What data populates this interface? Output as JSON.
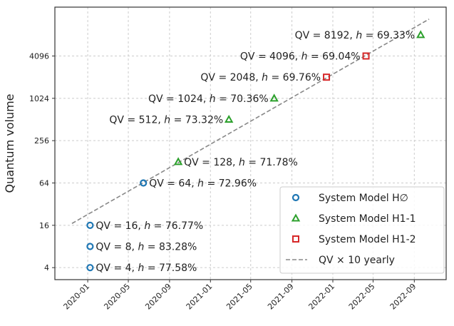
{
  "chart_data": {
    "type": "scatter",
    "title": "",
    "xlabel": "",
    "ylabel": "Quantum volume",
    "yscale": "log2",
    "ylim": [
      2.7,
      20300
    ],
    "xlim": [
      "2019-09-25",
      "2022-12-05"
    ],
    "yticks": [
      4,
      16,
      64,
      256,
      1024,
      4096
    ],
    "ytick_labels": [
      "4",
      "16",
      "64",
      "256",
      "1024",
      "4096"
    ],
    "xticks": [
      "2020-01",
      "2020-05",
      "2020-09",
      "2021-01",
      "2021-05",
      "2021-09",
      "2022-01",
      "2022-05",
      "2022-09"
    ],
    "grid": true,
    "legend_position": "bottom-right",
    "series": [
      {
        "name": "System Model H∅",
        "marker": "circle",
        "color": "#1f77b4",
        "points": [
          {
            "x": "2020-01-08",
            "y": 4,
            "label": "QV = 4, ",
            "h": "77.58%"
          },
          {
            "x": "2020-01-08",
            "y": 8,
            "label": "QV = 8, ",
            "h": "83.28%"
          },
          {
            "x": "2020-01-08",
            "y": 16,
            "label": "QV = 16, ",
            "h": "76.77%"
          },
          {
            "x": "2020-06-15",
            "y": 64,
            "label": "QV = 64, ",
            "h": "72.96%"
          }
        ]
      },
      {
        "name": "System Model H1-1",
        "marker": "triangle",
        "color": "#2ca02c",
        "points": [
          {
            "x": "2020-09-27",
            "y": 128,
            "label": "QV = 128, ",
            "h": "71.78%"
          },
          {
            "x": "2021-02-25",
            "y": 512,
            "label": "QV = 512, ",
            "h": "73.32%"
          },
          {
            "x": "2021-07-10",
            "y": 1024,
            "label": "QV = 1024, ",
            "h": "70.36%"
          },
          {
            "x": "2022-09-20",
            "y": 8192,
            "label": "QV = 8192, ",
            "h": "69.33%"
          }
        ]
      },
      {
        "name": "System Model H1-2",
        "marker": "square",
        "color": "#d62728",
        "points": [
          {
            "x": "2021-12-13",
            "y": 2048,
            "label": "QV = 2048, ",
            "h": "69.76%"
          },
          {
            "x": "2022-04-10",
            "y": 4096,
            "label": "QV = 4096, ",
            "h": "69.04%"
          }
        ]
      }
    ],
    "trend": {
      "name": "QV × 10 yearly",
      "color": "#888888",
      "style": "dashed",
      "x": [
        "2019-11-15",
        "2022-10-15"
      ],
      "y": [
        17,
        13700
      ]
    }
  }
}
